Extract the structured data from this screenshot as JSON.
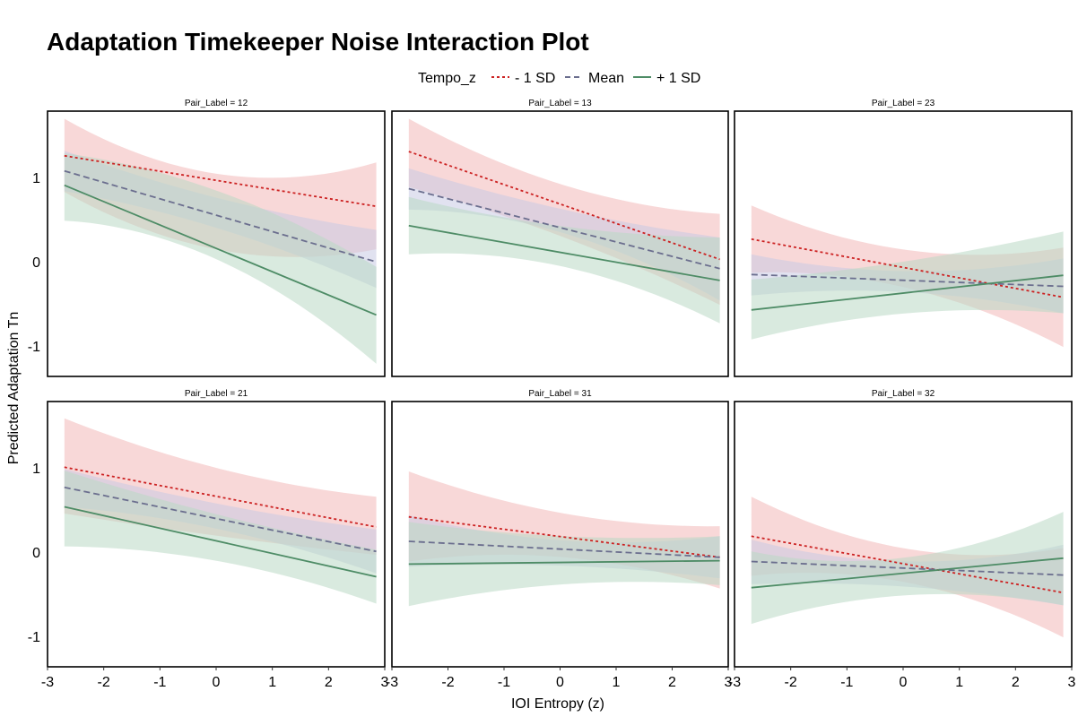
{
  "chart_data": {
    "type": "line",
    "title": "Adaptation Timekeeper Noise Interaction Plot",
    "xlabel": "IOI Entropy (z)",
    "ylabel": "Predicted Adaptation Tn",
    "xlim": [
      -3,
      3
    ],
    "ylim": [
      -1.35,
      1.8
    ],
    "x_ticks": [
      -3,
      -2,
      -1,
      0,
      1,
      2,
      3
    ],
    "x_tick_labels": [
      "-3",
      "-2",
      "-1",
      "0",
      "1",
      "2",
      "3"
    ],
    "y_ticks": [
      -1,
      0,
      1
    ],
    "y_tick_labels": [
      "-1",
      "0",
      "1"
    ],
    "grid": false,
    "legend": {
      "title": "Tempo_z",
      "position": "top",
      "entries": [
        {
          "label": "- 1 SD",
          "color": "#CC2222",
          "dash": "4,4"
        },
        {
          "label": "Mean",
          "color": "#6B6E8E",
          "dash": "10,6"
        },
        {
          "label": "+ 1 SD",
          "color": "#4E8C66",
          "dash": ""
        }
      ]
    },
    "x_range": [
      -2.7,
      2.85
    ],
    "panels": [
      {
        "strip": "Pair_Label = 12",
        "series": [
          {
            "name": "- 1 SD",
            "y": [
              1.27,
              0.67
            ],
            "ci_lo": [
              0.84,
              0.15,
              0.16
            ],
            "ci_hi": [
              1.71,
              1.05,
              1.19
            ],
            "fill": "#F2B8B8"
          },
          {
            "name": "Mean",
            "y": [
              1.09,
              0.01
            ],
            "ci_lo": [
              0.85,
              0.4,
              -0.3
            ],
            "ci_hi": [
              1.33,
              0.76,
              0.39
            ],
            "fill": "#C8CBE3"
          },
          {
            "name": "+ 1 SD",
            "y": [
              0.92,
              -0.62
            ],
            "ci_lo": [
              0.5,
              0.02,
              -1.2
            ],
            "ci_hi": [
              1.3,
              0.84,
              -0.05
            ],
            "fill": "#B9D9C4"
          }
        ]
      },
      {
        "strip": "Pair_Label = 13",
        "series": [
          {
            "name": "- 1 SD",
            "y": [
              1.32,
              0.04
            ],
            "ci_lo": [
              0.9,
              0.3,
              -0.5
            ],
            "ci_hi": [
              1.71,
              0.92,
              0.58
            ],
            "fill": "#F2B8B8"
          },
          {
            "name": "Mean",
            "y": [
              0.88,
              -0.07
            ],
            "ci_lo": [
              0.63,
              0.35,
              -0.45
            ],
            "ci_hi": [
              1.12,
              0.63,
              0.3
            ],
            "fill": "#C8CBE3"
          },
          {
            "name": "+ 1 SD",
            "y": [
              0.44,
              -0.21
            ],
            "ci_lo": [
              0.1,
              -0.05,
              -0.72
            ],
            "ci_hi": [
              0.78,
              0.43,
              0.3
            ],
            "fill": "#B9D9C4"
          }
        ]
      },
      {
        "strip": "Pair_Label = 23",
        "series": [
          {
            "name": "- 1 SD",
            "y": [
              0.28,
              -0.41
            ],
            "ci_lo": [
              -0.12,
              -0.3,
              -1.0
            ],
            "ci_hi": [
              0.68,
              0.15,
              0.18
            ],
            "fill": "#F2B8B8"
          },
          {
            "name": "Mean",
            "y": [
              -0.14,
              -0.28
            ],
            "ci_lo": [
              -0.39,
              -0.35,
              -0.6
            ],
            "ci_hi": [
              0.1,
              -0.1,
              0.05
            ],
            "fill": "#C8CBE3"
          },
          {
            "name": "+ 1 SD",
            "y": [
              -0.56,
              -0.15
            ],
            "ci_lo": [
              -0.91,
              -0.6,
              -0.6
            ],
            "ci_hi": [
              -0.2,
              0.02,
              0.37
            ],
            "fill": "#B9D9C4"
          }
        ]
      },
      {
        "strip": "Pair_Label = 21",
        "series": [
          {
            "name": "- 1 SD",
            "y": [
              1.02,
              0.31
            ],
            "ci_lo": [
              0.47,
              0.2,
              -0.02
            ],
            "ci_hi": [
              1.6,
              1.0,
              0.67
            ],
            "fill": "#F2B8B8"
          },
          {
            "name": "Mean",
            "y": [
              0.78,
              0.02
            ],
            "ci_lo": [
              0.55,
              0.28,
              -0.24
            ],
            "ci_hi": [
              1.0,
              0.58,
              0.28
            ],
            "fill": "#C8CBE3"
          },
          {
            "name": "+ 1 SD",
            "y": [
              0.55,
              -0.28
            ],
            "ci_lo": [
              0.08,
              -0.1,
              -0.6
            ],
            "ci_hi": [
              0.98,
              0.45,
              0.04
            ],
            "fill": "#B9D9C4"
          }
        ]
      },
      {
        "strip": "Pair_Label = 31",
        "series": [
          {
            "name": "- 1 SD",
            "y": [
              0.43,
              -0.05
            ],
            "ci_lo": [
              -0.1,
              -0.05,
              -0.42
            ],
            "ci_hi": [
              0.97,
              0.47,
              0.32
            ],
            "fill": "#F2B8B8"
          },
          {
            "name": "Mean",
            "y": [
              0.14,
              -0.05
            ],
            "ci_lo": [
              -0.16,
              -0.15,
              -0.3
            ],
            "ci_hi": [
              0.45,
              0.15,
              0.2
            ],
            "fill": "#C8CBE3"
          },
          {
            "name": "+ 1 SD",
            "y": [
              -0.13,
              -0.09
            ],
            "ci_lo": [
              -0.63,
              -0.37,
              -0.38
            ],
            "ci_hi": [
              0.37,
              0.2,
              0.2
            ],
            "fill": "#B9D9C4"
          }
        ]
      },
      {
        "strip": "Pair_Label = 32",
        "series": [
          {
            "name": "- 1 SD",
            "y": [
              0.2,
              -0.47
            ],
            "ci_lo": [
              -0.27,
              -0.35,
              -1.0
            ],
            "ci_hi": [
              0.67,
              0.05,
              0.06
            ],
            "fill": "#F2B8B8"
          },
          {
            "name": "Mean",
            "y": [
              -0.1,
              -0.26
            ],
            "ci_lo": [
              -0.37,
              -0.4,
              -0.62
            ],
            "ci_hi": [
              0.16,
              -0.1,
              0.1
            ],
            "fill": "#C8CBE3"
          },
          {
            "name": "+ 1 SD",
            "y": [
              -0.41,
              -0.06
            ],
            "ci_lo": [
              -0.84,
              -0.5,
              -0.62
            ],
            "ci_hi": [
              0.02,
              -0.05,
              0.49
            ],
            "fill": "#B9D9C4"
          }
        ]
      }
    ]
  }
}
